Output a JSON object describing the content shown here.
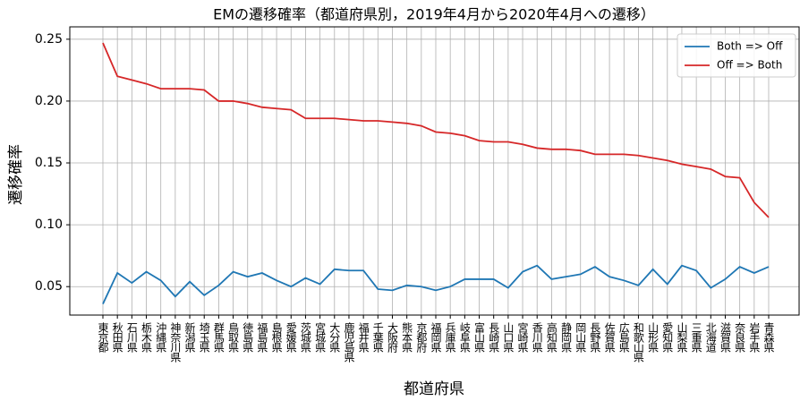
{
  "chart_data": {
    "type": "line",
    "title": "EMの遷移確率（都道府県別，2019年4月から2020年4月への遷移）",
    "x_label": "都道府県",
    "y_label": "遷移確率",
    "categories": [
      "東京都",
      "秋田県",
      "石川県",
      "栃木県",
      "沖縄県",
      "神奈川県",
      "新潟県",
      "埼玉県",
      "群馬県",
      "鳥取県",
      "徳島県",
      "福島県",
      "島根県",
      "愛媛県",
      "茨城県",
      "宮城県",
      "大分県",
      "鹿児島県",
      "福井県",
      "千葉県",
      "大阪府",
      "熊本県",
      "京都府",
      "福岡県",
      "兵庫県",
      "岐阜県",
      "富山県",
      "長崎県",
      "山口県",
      "宮崎県",
      "香川県",
      "高知県",
      "静岡県",
      "岡山県",
      "長野県",
      "佐賀県",
      "広島県",
      "和歌山県",
      "山形県",
      "愛知県",
      "山梨県",
      "三重県",
      "北海道",
      "滋賀県",
      "奈良県",
      "岩手県",
      "青森県"
    ],
    "series": [
      {
        "name": "Both => Off",
        "color": "#1f77b4",
        "values": [
          0.036,
          0.061,
          0.053,
          0.062,
          0.055,
          0.042,
          0.054,
          0.043,
          0.051,
          0.062,
          0.058,
          0.061,
          0.055,
          0.05,
          0.057,
          0.052,
          0.064,
          0.063,
          0.063,
          0.048,
          0.047,
          0.051,
          0.05,
          0.047,
          0.05,
          0.056,
          0.056,
          0.056,
          0.049,
          0.062,
          0.067,
          0.056,
          0.058,
          0.06,
          0.066,
          0.058,
          0.055,
          0.051,
          0.064,
          0.052,
          0.067,
          0.063,
          0.049,
          0.056,
          0.066,
          0.061,
          0.066
        ]
      },
      {
        "name": "Off => Both",
        "color": "#d62728",
        "values": [
          0.247,
          0.22,
          0.217,
          0.214,
          0.21,
          0.21,
          0.21,
          0.209,
          0.2,
          0.2,
          0.198,
          0.195,
          0.194,
          0.193,
          0.186,
          0.186,
          0.186,
          0.185,
          0.184,
          0.184,
          0.183,
          0.182,
          0.18,
          0.175,
          0.174,
          0.172,
          0.168,
          0.167,
          0.167,
          0.165,
          0.162,
          0.161,
          0.161,
          0.16,
          0.157,
          0.157,
          0.157,
          0.156,
          0.154,
          0.152,
          0.149,
          0.147,
          0.145,
          0.139,
          0.138,
          0.118,
          0.106
        ]
      }
    ],
    "ylim": [
      0.027,
      0.26
    ],
    "yticks": [
      0.05,
      {
        "value": 0.1,
        "label": "0.10"
      },
      0.15,
      {
        "value": 0.2,
        "label": "0.20"
      },
      0.25
    ],
    "grid": true,
    "legend": "upper right"
  }
}
